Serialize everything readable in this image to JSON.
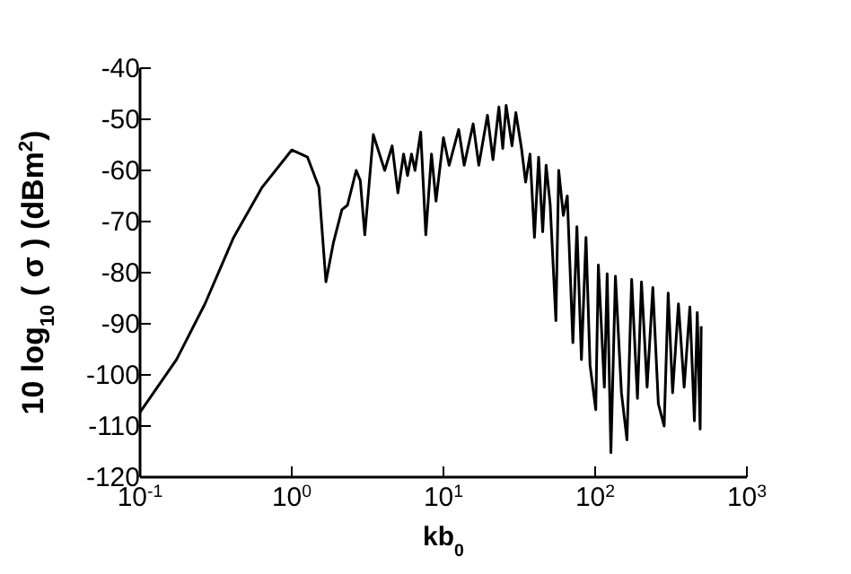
{
  "chart_data": {
    "type": "line",
    "xlabel": "kb$_{0}$",
    "ylabel": "10 log$_{10}$ ( σ )  (dBm$^{2}$)",
    "log": "x",
    "marker": "none",
    "line_style": "solid",
    "xlim": [
      0.1,
      1000
    ],
    "xticks": [
      {
        "value": 0.1,
        "label": "10$^{-1}$"
      },
      {
        "value": 1,
        "label": "10$^{0}$"
      },
      {
        "value": 10,
        "label": "10$^{1}$"
      },
      {
        "value": 100,
        "label": "10$^{2}$"
      },
      {
        "value": 1000,
        "label": "10$^{3}$"
      }
    ],
    "ylim": [
      -120,
      -40
    ],
    "yticks": [
      -120,
      -110,
      -100,
      -90,
      -80,
      -70,
      -60,
      -50,
      -40
    ],
    "series": [
      {
        "color": "#000000",
        "x": [
          0.1,
          0.174,
          0.268,
          0.414,
          0.638,
          1.0,
          1.27,
          1.51,
          1.68,
          1.88,
          2.14,
          2.33,
          2.66,
          2.83,
          3.03,
          3.45,
          4.1,
          4.59,
          5.01,
          5.46,
          5.8,
          6.16,
          6.49,
          7.08,
          7.65,
          8.34,
          8.93,
          10,
          10.9,
          12.6,
          13.7,
          15.7,
          17.1,
          19.5,
          21.2,
          23.2,
          24.6,
          25.9,
          28.3,
          30,
          32.7,
          34.8,
          37.2,
          39.8,
          42.4,
          45.1,
          47.5,
          50.5,
          55.1,
          57.5,
          61.7,
          65.5,
          71.3,
          75.8,
          81.2,
          87,
          92.5,
          100.9,
          105,
          115,
          120,
          127,
          136,
          149,
          162,
          174,
          190,
          202,
          220,
          240,
          261,
          285,
          303,
          324,
          354,
          386,
          421,
          451,
          471,
          492,
          500
        ],
        "values": [
          -107.3,
          -97,
          -86.1,
          -73.1,
          -63.3,
          -56,
          -57.4,
          -63.3,
          -81.8,
          -74.2,
          -67.7,
          -66.8,
          -60,
          -62,
          -72.6,
          -53,
          -60,
          -55.2,
          -64.4,
          -56.8,
          -61,
          -56.8,
          -60,
          -52.5,
          -72.6,
          -56.8,
          -66,
          -53.6,
          -59,
          -52,
          -59,
          -50.9,
          -59,
          -49.2,
          -57.9,
          -47.6,
          -55.7,
          -47.3,
          -55.2,
          -48.7,
          -55.7,
          -62.3,
          -56.8,
          -73.1,
          -57.4,
          -72,
          -59,
          -66.6,
          -89.4,
          -60,
          -68.8,
          -65,
          -93.7,
          -71,
          -97,
          -73.1,
          -98.1,
          -106.8,
          -78.5,
          -102.4,
          -80.2,
          -115.2,
          -80.7,
          -103.5,
          -112.7,
          -81.3,
          -104.6,
          -81.8,
          -102.4,
          -82.9,
          -105.7,
          -110,
          -84,
          -103.5,
          -86.1,
          -102.4,
          -86.7,
          -109,
          -87.8,
          -110.6,
          -90.5
        ]
      }
    ]
  }
}
